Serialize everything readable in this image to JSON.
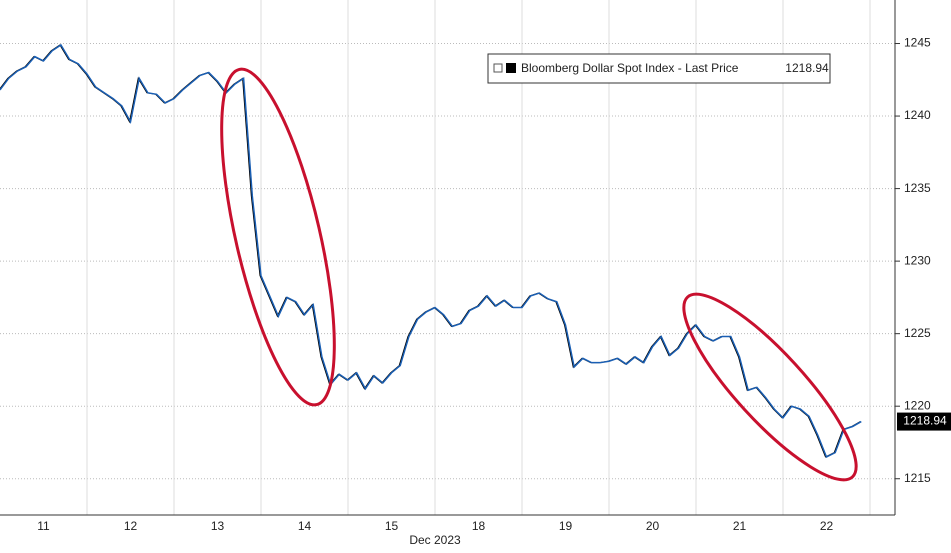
{
  "chart_data": {
    "type": "line",
    "x_label": "Dec 2023",
    "categories": [
      null,
      null,
      null,
      null,
      null,
      "11",
      null,
      null,
      null,
      null,
      null,
      null,
      null,
      null,
      null,
      "12",
      null,
      null,
      null,
      null,
      null,
      null,
      null,
      null,
      null,
      "13",
      null,
      null,
      null,
      null,
      null,
      null,
      null,
      null,
      null,
      "14",
      null,
      null,
      null,
      null,
      null,
      null,
      null,
      null,
      null,
      "15",
      null,
      null,
      null,
      null,
      null,
      null,
      null,
      null,
      null,
      "18",
      null,
      null,
      null,
      null,
      null,
      null,
      null,
      null,
      null,
      "19",
      null,
      null,
      null,
      null,
      null,
      null,
      null,
      null,
      null,
      "20",
      null,
      null,
      null,
      null,
      null,
      null,
      null,
      null,
      null,
      "21",
      null,
      null,
      null,
      null,
      null,
      null,
      null,
      null,
      null,
      "22",
      null,
      null,
      null,
      null
    ],
    "series": [
      {
        "name": "Bloomberg Dollar Spot Index - Last Price",
        "color": "#1a5fb4",
        "values": [
          1241.8,
          1242.6,
          1243.1,
          1243.4,
          1244.1,
          1243.8,
          1244.5,
          1244.9,
          1243.9,
          1243.6,
          1242.9,
          1242.0,
          1241.6,
          1241.2,
          1240.7,
          1239.6,
          1242.6,
          1241.6,
          1241.5,
          1240.9,
          1241.2,
          1241.8,
          1242.3,
          1242.8,
          1243.0,
          1242.4,
          1241.6,
          1242.2,
          1242.6,
          1234.5,
          1229.0,
          1227.6,
          1226.2,
          1227.5,
          1227.2,
          1226.3,
          1227.0,
          1223.4,
          1221.5,
          1222.2,
          1221.8,
          1222.3,
          1221.2,
          1222.1,
          1221.6,
          1222.3,
          1222.8,
          1224.8,
          1226.0,
          1226.5,
          1226.8,
          1226.3,
          1225.5,
          1225.7,
          1226.6,
          1226.9,
          1227.6,
          1226.9,
          1227.3,
          1226.8,
          1226.8,
          1227.6,
          1227.8,
          1227.4,
          1227.2,
          1225.6,
          1222.7,
          1223.3,
          1223.0,
          1223.0,
          1223.1,
          1223.3,
          1222.9,
          1223.4,
          1223.0,
          1224.1,
          1224.8,
          1223.5,
          1224.0,
          1225.0,
          1225.6,
          1224.8,
          1224.5,
          1224.8,
          1224.8,
          1223.4,
          1221.1,
          1221.3,
          1220.6,
          1219.8,
          1219.2,
          1220.0,
          1219.8,
          1219.3,
          1218.0,
          1216.5,
          1216.8,
          1218.4,
          1218.6,
          1218.94
        ]
      }
    ],
    "ylim": [
      1212.5,
      1248
    ],
    "yticks": [
      1215,
      1220,
      1225,
      1230,
      1235,
      1240,
      1245
    ],
    "grid": true
  }
}
